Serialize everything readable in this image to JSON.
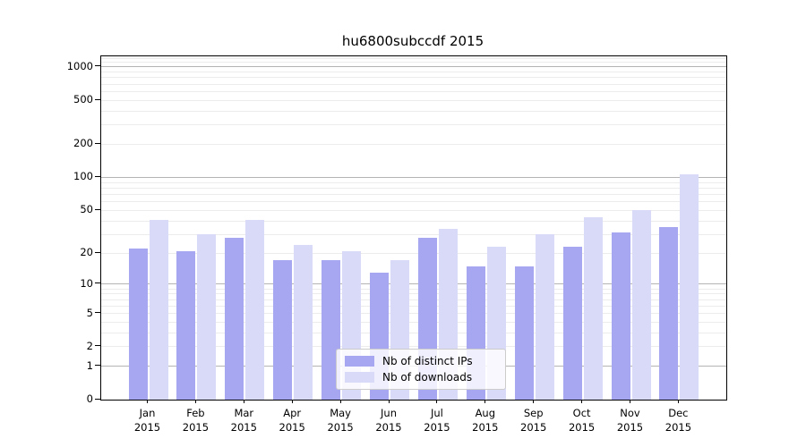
{
  "chart_data": {
    "type": "bar",
    "title": "hu6800subccdf 2015",
    "categories": [
      "Jan",
      "Feb",
      "Mar",
      "Apr",
      "May",
      "Jun",
      "Jul",
      "Aug",
      "Sep",
      "Oct",
      "Nov",
      "Dec"
    ],
    "category_year": "2015",
    "series": [
      {
        "name": "Nb of distinct IPs",
        "color": "#a7a7f1",
        "values": [
          22,
          21,
          28,
          17,
          17,
          13,
          28,
          15,
          15,
          23,
          31,
          35
        ]
      },
      {
        "name": "Nb of downloads",
        "color": "#d9d9f8",
        "values": [
          41,
          30,
          41,
          24,
          21,
          17,
          34,
          23,
          30,
          43,
          50,
          107
        ]
      }
    ],
    "yscale": "log1p",
    "ytick_labels": [
      "0",
      "1",
      "2",
      "5",
      "10",
      "20",
      "50",
      "100",
      "200",
      "500",
      "1000"
    ],
    "ytick_values": [
      0,
      1,
      2,
      5,
      10,
      20,
      50,
      100,
      200,
      500,
      1000
    ],
    "ylim": [
      0,
      1250
    ],
    "xlabel": "",
    "ylabel": "",
    "grid": "horizontal",
    "legend_position": "lower-center"
  },
  "colors": {
    "background": "#ffffff",
    "axis": "#000000",
    "major_grid": "#b4b4b4",
    "minor_grid": "#ececec",
    "legend_border": "#cccccc"
  }
}
